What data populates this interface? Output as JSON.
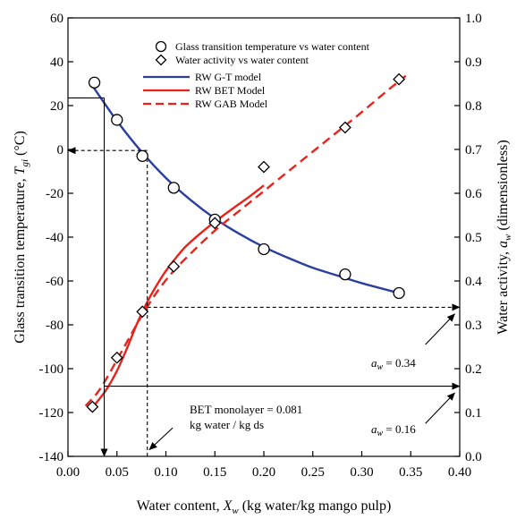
{
  "chart_data": {
    "type": "scatter",
    "axes": {
      "x": {
        "label_main": "Water content, ",
        "label_symbol": "X",
        "label_sub": "w",
        "label_unit": "  (kg water/kg mango pulp)",
        "lim": [
          0.0,
          0.4
        ],
        "ticks": [
          0.0,
          0.05,
          0.1,
          0.15,
          0.2,
          0.25,
          0.3,
          0.35,
          0.4
        ],
        "tick_labels": [
          "0.00",
          "0.05",
          "0.10",
          "0.15",
          "0.20",
          "0.25",
          "0.30",
          "0.35",
          "0.40"
        ]
      },
      "y_left": {
        "label_main": "Glass transition temperature, ",
        "label_symbol": "T",
        "label_sub": "gi",
        "label_unit": " (°C)",
        "lim": [
          -140,
          60
        ],
        "ticks": [
          -140,
          -120,
          -100,
          -80,
          -60,
          -40,
          -20,
          0,
          20,
          40,
          60
        ],
        "tick_labels": [
          "-140",
          "-120",
          "-100",
          "-80",
          "-60",
          "-40",
          "-20",
          "0",
          "20",
          "40",
          "60"
        ]
      },
      "y_right": {
        "label_main": "Water activity, ",
        "label_symbol": "a",
        "label_sub": "w",
        "label_unit": " (dimensionless)",
        "lim": [
          0.0,
          1.0
        ],
        "ticks": [
          0.0,
          0.1,
          0.2,
          0.3,
          0.4,
          0.5,
          0.6,
          0.7,
          0.8,
          0.9,
          1.0
        ],
        "tick_labels": [
          "0.0",
          "0.1",
          "0.2",
          "0.3",
          "0.4",
          "0.5",
          "0.6",
          "0.7",
          "0.8",
          "0.9",
          "1.0"
        ]
      }
    },
    "series": [
      {
        "name": "Glass transition temperature vs water content",
        "kind": "points",
        "marker": "circle",
        "axis": "left",
        "x": [
          0.027,
          0.05,
          0.076,
          0.108,
          0.15,
          0.2,
          0.283,
          0.338
        ],
        "y": [
          30.5,
          13.5,
          -3.0,
          -17.5,
          -32.0,
          -45.5,
          -57.0,
          -65.5
        ]
      },
      {
        "name": "Water activity vs water content",
        "kind": "points",
        "marker": "diamond",
        "axis": "right",
        "x": [
          0.025,
          0.05,
          0.076,
          0.108,
          0.15,
          0.2,
          0.283,
          0.338
        ],
        "y": [
          0.113,
          0.225,
          0.33,
          0.433,
          0.532,
          0.66,
          0.75,
          0.86
        ]
      },
      {
        "name": "RW G-T model",
        "kind": "line",
        "style": "solid",
        "color": "#2b3f9e",
        "axis": "left",
        "x": [
          0.025,
          0.05,
          0.075,
          0.1,
          0.125,
          0.15,
          0.175,
          0.2,
          0.225,
          0.25,
          0.275,
          0.3,
          0.338
        ],
        "y": [
          29,
          13,
          -1,
          -13,
          -23,
          -31.5,
          -38.5,
          -44.5,
          -49.5,
          -54,
          -57.5,
          -61,
          -65.5
        ]
      },
      {
        "name": "RW BET Model",
        "kind": "line",
        "style": "solid",
        "color": "#e8231c",
        "axis": "right",
        "x": [
          0.022,
          0.03,
          0.04,
          0.05,
          0.06,
          0.07,
          0.08,
          0.09,
          0.1,
          0.11,
          0.12,
          0.135,
          0.15,
          0.17,
          0.185,
          0.2
        ],
        "y": [
          0.105,
          0.125,
          0.155,
          0.195,
          0.245,
          0.3,
          0.348,
          0.388,
          0.423,
          0.452,
          0.478,
          0.508,
          0.535,
          0.568,
          0.592,
          0.618
        ]
      },
      {
        "name": "RW GAB Model",
        "kind": "line",
        "style": "dashed",
        "color": "#e8231c",
        "axis": "right",
        "x": [
          0.018,
          0.03,
          0.04,
          0.05,
          0.06,
          0.07,
          0.08,
          0.09,
          0.1,
          0.11,
          0.125,
          0.15,
          0.175,
          0.2,
          0.225,
          0.25,
          0.275,
          0.3,
          0.325,
          0.345
        ],
        "y": [
          0.115,
          0.145,
          0.18,
          0.22,
          0.26,
          0.3,
          0.338,
          0.372,
          0.402,
          0.428,
          0.462,
          0.515,
          0.56,
          0.605,
          0.65,
          0.695,
          0.74,
          0.785,
          0.832,
          0.868
        ]
      }
    ],
    "annotations": {
      "bet_monolayer_line1": "BET monolayer = 0.081",
      "bet_monolayer_line2": "kg water / kg ds",
      "aw_high_prefix": "a",
      "aw_high_sub": "w",
      "aw_high_value": " = 0.34",
      "aw_low_prefix": "a",
      "aw_low_sub": "w",
      "aw_low_value": " = 0.16"
    },
    "guide_lines": [
      {
        "name": "aw-high-horizontal-arrow",
        "style": "dashed",
        "head": "end",
        "from": {
          "axis": "right",
          "x": 0.081,
          "y": 0.34
        },
        "to": {
          "axis": "right",
          "x": 0.4,
          "y": 0.34
        }
      },
      {
        "name": "monolayer-vertical-guide",
        "style": "dashed",
        "head": "none",
        "from": {
          "axis": "left",
          "x": 0.081,
          "y": -140
        },
        "to": {
          "axis": "left",
          "x": 0.081,
          "y": -5
        }
      },
      {
        "name": "tg-zero-horizontal-arrow",
        "style": "dashed",
        "head": "end",
        "from": {
          "axis": "left",
          "x": 0.081,
          "y": -0.5
        },
        "to": {
          "axis": "left",
          "x": 0.0,
          "y": -0.5
        }
      },
      {
        "name": "monolayer-point-arrow",
        "style": "solid",
        "head": "end",
        "from": {
          "axis": "left",
          "x": 0.07,
          "y": -2
        },
        "to": {
          "axis": "left",
          "x": 0.08,
          "y": -5
        }
      },
      {
        "name": "tg-23-horizontal-line",
        "style": "solid",
        "head": "none",
        "from": {
          "axis": "left",
          "x": 0.0,
          "y": 23.5
        },
        "to": {
          "axis": "left",
          "x": 0.037,
          "y": 23.5
        }
      },
      {
        "name": "x-037-vertical-arrow",
        "style": "solid",
        "head": "end",
        "from": {
          "axis": "left",
          "x": 0.037,
          "y": 23.5
        },
        "to": {
          "axis": "left",
          "x": 0.037,
          "y": -140
        }
      },
      {
        "name": "aw-low-horizontal-arrow",
        "style": "solid",
        "head": "end",
        "from": {
          "axis": "right",
          "x": 0.037,
          "y": 0.16
        },
        "to": {
          "axis": "right",
          "x": 0.4,
          "y": 0.16
        }
      }
    ],
    "pointer_arrows": [
      {
        "name": "aw-high-pointer-arrow",
        "from": {
          "axis": "right",
          "x": 0.365,
          "y": 0.255
        },
        "to": {
          "axis": "right",
          "x": 0.395,
          "y": 0.325
        }
      },
      {
        "name": "aw-low-pointer-arrow",
        "from": {
          "axis": "right",
          "x": 0.365,
          "y": 0.075
        },
        "to": {
          "axis": "right",
          "x": 0.395,
          "y": 0.145
        }
      },
      {
        "name": "bet-pointer-arrow",
        "from": {
          "axis": "left",
          "x": 0.107,
          "y": -127
        },
        "to": {
          "axis": "left",
          "x": 0.083,
          "y": -137
        }
      }
    ],
    "legend": {
      "position": "top-center"
    }
  }
}
